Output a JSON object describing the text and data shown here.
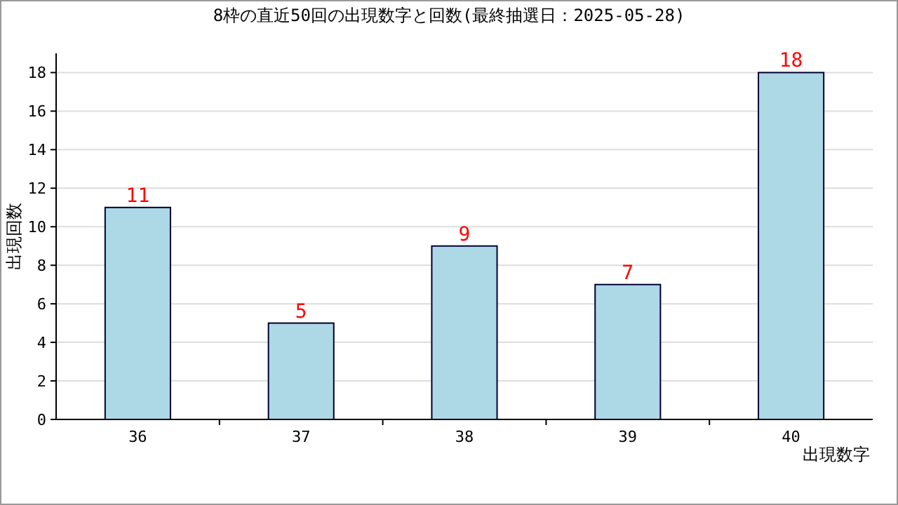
{
  "chart_data": {
    "type": "bar",
    "title": "8枠の直近50回の出現数字と回数(最終抽選日：2025-05-28)",
    "xlabel": "出現数字",
    "ylabel": "出現回数",
    "categories": [
      "36",
      "37",
      "38",
      "39",
      "40"
    ],
    "values": [
      11,
      5,
      9,
      7,
      18
    ],
    "color": "#add8e6",
    "ylim": [
      0,
      19
    ],
    "yticks": [
      0,
      2,
      4,
      6,
      8,
      10,
      12,
      14,
      16,
      18
    ],
    "grid": "y",
    "data_labels": true
  }
}
